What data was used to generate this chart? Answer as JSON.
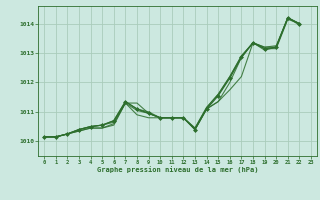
{
  "background_color": "#cce8e0",
  "grid_color": "#aaccbb",
  "line_color": "#2d6e2d",
  "marker_color": "#2d6e2d",
  "xlabel": "Graphe pression niveau de la mer (hPa)",
  "ylim": [
    1009.5,
    1014.6
  ],
  "xlim": [
    -0.5,
    23.5
  ],
  "yticks": [
    1010,
    1011,
    1012,
    1013,
    1014
  ],
  "xticks": [
    0,
    1,
    2,
    3,
    4,
    5,
    6,
    7,
    8,
    9,
    10,
    11,
    12,
    13,
    14,
    15,
    16,
    17,
    18,
    19,
    20,
    21,
    22,
    23
  ],
  "series": [
    [
      1010.15,
      1010.15,
      1010.25,
      1010.35,
      1010.45,
      1010.45,
      1010.55,
      1011.3,
      1011.3,
      1010.95,
      1010.8,
      1010.8,
      1010.8,
      1010.4,
      1011.1,
      1011.35,
      1011.75,
      1012.2,
      1013.35,
      1013.1,
      1013.2,
      1014.2,
      1013.95,
      null
    ],
    [
      1010.15,
      1010.15,
      1010.25,
      1010.35,
      1010.45,
      1010.45,
      1010.6,
      1011.3,
      1010.9,
      1010.8,
      1010.8,
      1010.8,
      1010.8,
      1010.4,
      1011.1,
      1011.35,
      1012.0,
      1012.85,
      1013.35,
      1013.15,
      1013.15,
      1014.15,
      1014.0,
      null
    ],
    [
      1010.15,
      1010.15,
      1010.25,
      1010.4,
      1010.5,
      1010.55,
      1010.65,
      1011.3,
      1011.05,
      1010.95,
      1010.8,
      1010.8,
      1010.8,
      1010.45,
      1011.15,
      1011.6,
      1012.2,
      1012.9,
      1013.35,
      1013.2,
      1013.2,
      1014.2,
      1014.0,
      null
    ],
    [
      1010.15,
      1010.15,
      1010.25,
      1010.4,
      1010.5,
      1010.55,
      1010.7,
      1011.35,
      1011.1,
      1011.0,
      1010.8,
      1010.8,
      1010.8,
      1010.45,
      1011.15,
      1011.6,
      1012.2,
      1012.9,
      1013.35,
      1013.2,
      1013.25,
      1014.2,
      1014.0,
      null
    ]
  ],
  "main_series": [
    1010.15,
    1010.15,
    1010.25,
    1010.4,
    1010.5,
    1010.55,
    1010.7,
    1011.35,
    1011.1,
    1010.95,
    1010.8,
    1010.8,
    1010.8,
    1010.4,
    1011.1,
    1011.55,
    1012.15,
    1012.85,
    1013.35,
    1013.15,
    1013.2,
    1014.2,
    1014.0,
    null
  ]
}
